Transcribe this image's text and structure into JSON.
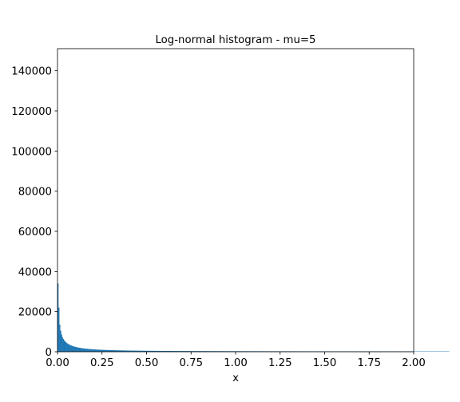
{
  "chart_data": {
    "type": "bar",
    "title": "Log-normal histogram - mu=5",
    "xlabel": "x",
    "ylabel": "",
    "xlim": [
      0,
      2
    ],
    "ylim": [
      0,
      151000
    ],
    "grid": false,
    "legend": "none",
    "bar_color": "#1f77b4",
    "x_ticks": [
      0,
      0.25,
      0.5,
      0.75,
      1.0,
      1.25,
      1.5,
      1.75,
      2.0
    ],
    "x_tick_labels": [
      "0.00",
      "0.25",
      "0.50",
      "0.75",
      "1.00",
      "1.25",
      "1.50",
      "1.75",
      "2.00"
    ],
    "y_ticks": [
      0,
      20000,
      40000,
      60000,
      80000,
      100000,
      120000,
      140000
    ],
    "y_tick_labels": [
      "0",
      "20000",
      "40000",
      "60000",
      "80000",
      "100000",
      "120000",
      "140000"
    ],
    "bin_edges_start": 0,
    "bin_width": 0.005,
    "bin_counts": [
      34000,
      22000,
      13500,
      10500,
      8600,
      7300,
      6400,
      5700,
      5150,
      4700,
      4320,
      4000,
      3720,
      3480,
      3270,
      3080,
      2910,
      2760,
      2620,
      2490,
      2370,
      2260,
      2160,
      2070,
      1990,
      1910,
      1840,
      1770,
      1710,
      1650,
      1595,
      1545,
      1497,
      1452,
      1410,
      1370,
      1332,
      1296,
      1262,
      1230,
      1199,
      1170,
      1142,
      1115,
      1090,
      1065,
      1042,
      1019,
      998,
      977,
      957,
      938,
      920,
      902,
      885,
      869,
      853,
      838,
      823,
      809,
      795,
      782,
      769,
      757,
      745,
      733,
      722,
      711,
      700,
      690,
      680,
      670,
      661,
      652,
      643,
      634,
      626,
      618,
      610,
      602,
      595,
      588,
      581,
      574,
      567,
      561,
      554,
      548,
      542,
      536,
      530,
      524,
      519,
      514,
      508,
      503,
      498,
      493,
      488,
      484,
      479,
      475,
      470,
      466,
      462,
      458,
      454,
      450,
      446,
      442,
      438,
      435,
      431,
      428,
      424,
      421,
      418,
      414,
      411,
      408,
      405,
      402,
      399,
      396,
      393,
      391,
      388,
      385,
      383,
      380,
      377,
      375,
      372,
      370,
      368,
      365,
      363,
      361,
      358,
      356,
      354,
      352,
      350,
      348,
      346,
      344,
      342,
      340,
      338,
      336,
      334,
      332,
      330,
      329,
      327,
      325,
      323,
      322,
      320,
      318,
      317,
      315,
      314,
      312,
      311,
      309,
      308,
      306,
      305,
      303,
      302,
      301,
      299,
      298,
      296,
      295,
      294,
      292,
      291,
      290,
      289,
      287,
      286,
      285,
      284,
      283,
      281,
      280,
      279,
      278,
      277,
      276,
      275,
      274,
      272,
      271,
      270,
      269,
      268,
      267,
      266,
      265,
      264,
      263,
      262,
      261,
      260,
      259,
      258,
      258,
      257,
      256,
      255,
      254,
      253,
      252,
      251,
      250,
      250,
      249,
      248,
      247,
      246,
      246,
      245,
      244,
      243,
      242,
      242,
      241,
      240,
      239,
      239,
      238,
      237,
      237,
      236,
      235,
      234,
      234,
      233,
      232,
      232,
      231,
      230,
      230,
      229,
      228,
      228,
      227,
      227,
      226,
      225,
      225,
      224,
      224,
      223,
      222,
      222,
      221,
      221,
      220,
      219,
      219,
      218,
      218,
      217,
      217,
      216,
      216,
      215,
      214,
      214,
      213,
      213,
      212,
      212,
      211,
      211,
      210,
      210,
      209,
      209,
      208,
      208,
      207,
      207,
      206,
      206,
      206,
      205,
      205,
      204,
      204,
      203,
      203,
      202,
      202,
      202,
      201,
      201,
      200,
      200,
      199,
      199,
      199,
      198,
      198,
      197,
      197,
      197,
      196,
      196,
      195,
      195,
      195,
      194,
      194,
      193,
      193,
      193,
      192,
      192,
      192,
      191,
      191,
      190,
      190,
      190,
      189,
      189,
      189,
      188,
      188,
      188,
      187,
      187,
      187,
      186,
      186,
      186,
      185,
      185,
      185,
      184,
      184,
      184,
      183,
      183,
      183,
      182,
      182,
      182,
      182,
      181,
      181,
      181,
      180,
      180,
      180,
      180,
      179,
      179,
      179,
      178,
      178,
      178,
      178,
      177,
      177,
      177,
      176,
      176,
      176,
      176,
      175,
      175,
      175,
      175,
      174,
      174,
      174,
      174,
      173,
      173,
      173,
      173,
      172,
      172,
      172,
      172,
      171,
      171,
      171,
      171,
      170,
      170,
      170,
      170,
      169,
      169,
      169,
      169,
      169,
      168,
      168,
      168,
      168,
      167,
      167,
      167,
      167,
      167,
      166,
      166,
      166,
      166,
      165,
      165,
      165,
      165,
      165,
      164,
      164,
      164,
      164,
      164,
      163,
      163,
      163,
      163,
      163,
      162,
      162,
      162,
      162,
      162,
      161,
      161,
      161
    ]
  }
}
